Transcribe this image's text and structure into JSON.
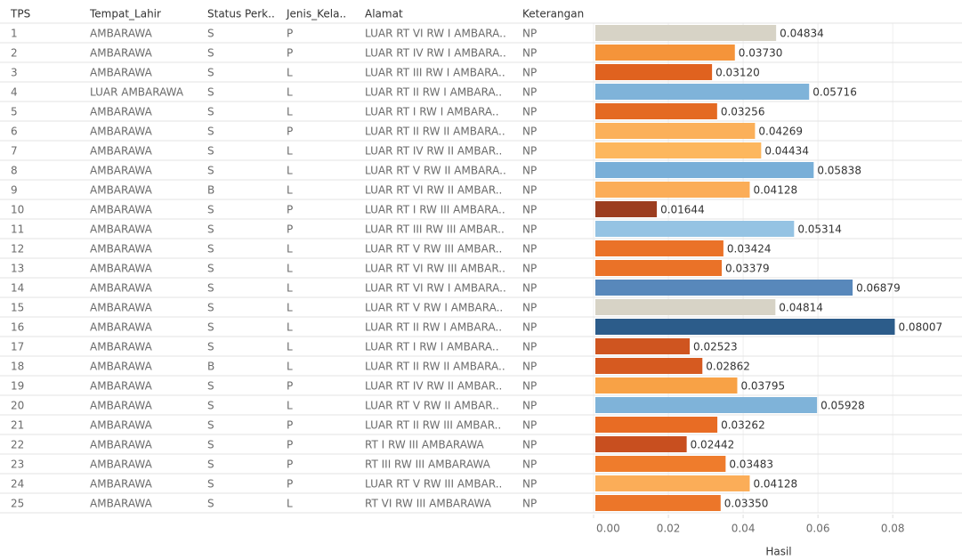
{
  "chart_data": {
    "type": "bar",
    "columns": [
      "TPS",
      "Tempat_Lahir",
      "Status Perk..",
      "Jenis_Kela..",
      "Alamat",
      "Keterangan"
    ],
    "rows": [
      [
        "1",
        "AMBARAWA",
        "S",
        "P",
        "LUAR RT VI RW I AMBARA..",
        "NP"
      ],
      [
        "2",
        "AMBARAWA",
        "S",
        "P",
        "LUAR RT IV RW I AMBARA..",
        "NP"
      ],
      [
        "3",
        "AMBARAWA",
        "S",
        "L",
        "LUAR RT III RW I AMBARA..",
        "NP"
      ],
      [
        "4",
        "LUAR AMBARAWA",
        "S",
        "L",
        "LUAR RT II RW I AMBARA..",
        "NP"
      ],
      [
        "5",
        "AMBARAWA",
        "S",
        "L",
        "LUAR RT I RW I AMBARA..",
        "NP"
      ],
      [
        "6",
        "AMBARAWA",
        "S",
        "P",
        "LUAR RT II RW II AMBARA..",
        "NP"
      ],
      [
        "7",
        "AMBARAWA",
        "S",
        "L",
        "LUAR RT IV RW II AMBAR..",
        "NP"
      ],
      [
        "8",
        "AMBARAWA",
        "S",
        "L",
        "LUAR RT V RW II AMBARA..",
        "NP"
      ],
      [
        "9",
        "AMBARAWA",
        "B",
        "L",
        "LUAR RT VI RW II AMBAR..",
        "NP"
      ],
      [
        "10",
        "AMBARAWA",
        "S",
        "P",
        "LUAR RT I RW III AMBARA..",
        "NP"
      ],
      [
        "11",
        "AMBARAWA",
        "S",
        "P",
        "LUAR RT III RW III AMBAR..",
        "NP"
      ],
      [
        "12",
        "AMBARAWA",
        "S",
        "L",
        "LUAR RT V RW III AMBAR..",
        "NP"
      ],
      [
        "13",
        "AMBARAWA",
        "S",
        "L",
        "LUAR RT VI RW III AMBAR..",
        "NP"
      ],
      [
        "14",
        "AMBARAWA",
        "S",
        "L",
        "LUAR RT VI RW I AMBARA..",
        "NP"
      ],
      [
        "15",
        "AMBARAWA",
        "S",
        "L",
        "LUAR RT V RW I AMBARA..",
        "NP"
      ],
      [
        "16",
        "AMBARAWA",
        "S",
        "L",
        "LUAR RT II RW I AMBARA..",
        "NP"
      ],
      [
        "17",
        "AMBARAWA",
        "S",
        "L",
        "LUAR RT I RW I AMBARA..",
        "NP"
      ],
      [
        "18",
        "AMBARAWA",
        "B",
        "L",
        "LUAR RT II RW II AMBARA..",
        "NP"
      ],
      [
        "19",
        "AMBARAWA",
        "S",
        "P",
        "LUAR RT IV RW II AMBAR..",
        "NP"
      ],
      [
        "20",
        "AMBARAWA",
        "S",
        "L",
        "LUAR RT V RW II AMBAR..",
        "NP"
      ],
      [
        "21",
        "AMBARAWA",
        "S",
        "P",
        "LUAR RT II RW III AMBAR..",
        "NP"
      ],
      [
        "22",
        "AMBARAWA",
        "S",
        "P",
        "RT I RW III AMBARAWA",
        "NP"
      ],
      [
        "23",
        "AMBARAWA",
        "S",
        "P",
        "RT III RW III AMBARAWA",
        "NP"
      ],
      [
        "24",
        "AMBARAWA",
        "S",
        "P",
        "LUAR RT V RW III AMBAR..",
        "NP"
      ],
      [
        "25",
        "AMBARAWA",
        "S",
        "L",
        "RT VI RW III AMBARAWA",
        "NP"
      ]
    ],
    "values": [
      0.04834,
      0.0373,
      0.0312,
      0.05716,
      0.03256,
      0.04269,
      0.04434,
      0.05838,
      0.04128,
      0.01644,
      0.05314,
      0.03424,
      0.03379,
      0.06879,
      0.04814,
      0.08007,
      0.02523,
      0.02862,
      0.03795,
      0.05928,
      0.03262,
      0.02442,
      0.03483,
      0.04128,
      0.0335
    ],
    "value_labels": [
      "0.04834",
      "0.03730",
      "0.03120",
      "0.05716",
      "0.03256",
      "0.04269",
      "0.04434",
      "0.05838",
      "0.04128",
      "0.01644",
      "0.05314",
      "0.03424",
      "0.03379",
      "0.06879",
      "0.04814",
      "0.08007",
      "0.02523",
      "0.02862",
      "0.03795",
      "0.05928",
      "0.03262",
      "0.02442",
      "0.03483",
      "0.04128",
      "0.03350"
    ],
    "colors": [
      "#d7d3c6",
      "#f5943a",
      "#e0621f",
      "#7fb3d9",
      "#e46a22",
      "#fbb05a",
      "#fdb75e",
      "#79afd8",
      "#fbad58",
      "#9c3d1f",
      "#95c3e3",
      "#ea7228",
      "#ea7228",
      "#5888bb",
      "#d7d3c6",
      "#2c5c8a",
      "#cf5520",
      "#d65a20",
      "#f8a246",
      "#7fb3d9",
      "#e86c24",
      "#c84f1f",
      "#ef7c2c",
      "#fbad58",
      "#ec7629"
    ],
    "xlabel": "Hasil",
    "xlim": [
      0,
      0.0978
    ],
    "xticks": [
      {
        "value": 0,
        "label": "0.00"
      },
      {
        "value": 0.02,
        "label": "0.02"
      },
      {
        "value": 0.04,
        "label": "0.04"
      },
      {
        "value": 0.06,
        "label": "0.06"
      },
      {
        "value": 0.08,
        "label": "0.08"
      }
    ],
    "grid": true
  }
}
